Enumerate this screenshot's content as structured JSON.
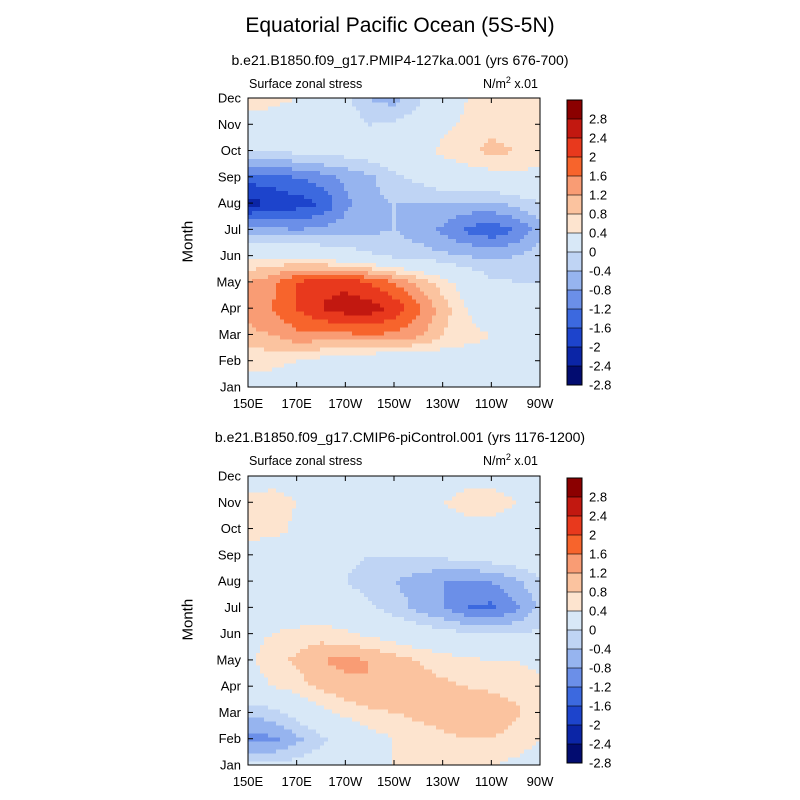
{
  "title": "Equatorial Pacific Ocean (5S-5N)",
  "units": {
    "base": "N/m",
    "sup": "2",
    "suffix": " x.01"
  },
  "month_ticks": [
    "Jan",
    "Feb",
    "Mar",
    "Apr",
    "May",
    "Jun",
    "Jul",
    "Aug",
    "Sep",
    "Oct",
    "Nov",
    "Dec"
  ],
  "lon_ticks": [
    "150E",
    "170E",
    "170W",
    "150W",
    "130W",
    "110W",
    "90W"
  ],
  "colorbar_labels": [
    "2.8",
    "2.4",
    "2",
    "1.6",
    "1.2",
    "0.8",
    "0.4",
    "0",
    "-0.4",
    "-0.8",
    "-1.2",
    "-1.6",
    "-2",
    "-2.4",
    "-2.8"
  ],
  "colorbar_colors": [
    "#8b0000",
    "#c21810",
    "#e8391d",
    "#f7642c",
    "#f99c74",
    "#fbc39f",
    "#fde4cf",
    "#d8e8f7",
    "#bfd4f4",
    "#96b4ef",
    "#6b8fe8",
    "#3c69df",
    "#1d44cc",
    "#0b25a6",
    "#020c70"
  ],
  "panels": [
    {
      "subtitle": "b.e21.B1850.f09_g17.PMIP4-127ka.001 (yrs 676-700)",
      "field_label": "Surface zonal stress",
      "ylabel": "Month"
    },
    {
      "subtitle": "b.e21.B1850.f09_g17.CMIP6-piControl.001 (yrs 1176-1200)",
      "field_label": "Surface zonal stress",
      "ylabel": "Month"
    }
  ],
  "chart_data": [
    {
      "type": "heatmap",
      "title": "b.e21.B1850.f09_g17.PMIP4-127ka.001 (yrs 676-700)",
      "field": "Surface zonal stress",
      "units": "N/m2 x.01",
      "ylabel": "Month",
      "x_lon": [
        150,
        160,
        170,
        180,
        190,
        200,
        210,
        220,
        230,
        240,
        250,
        260,
        270
      ],
      "y_month": [
        "Jan",
        "Feb",
        "Mar",
        "Apr",
        "May",
        "Jun",
        "Jul",
        "Aug",
        "Sep",
        "Oct",
        "Nov",
        "Dec"
      ],
      "levels": [
        -2.8,
        -2.4,
        -2,
        -1.6,
        -1.2,
        -0.8,
        -0.4,
        0,
        0.4,
        0.8,
        1.2,
        1.6,
        2,
        2.4,
        2.8
      ],
      "z": [
        [
          0.2,
          0.2,
          0.1,
          0.0,
          -0.2,
          -0.4,
          -0.3,
          -0.2,
          0.0,
          0.1,
          0.2,
          0.2,
          0.1
        ],
        [
          0.5,
          0.5,
          0.4,
          0.2,
          0.0,
          -0.1,
          -0.1,
          0.0,
          0.0,
          0.2,
          0.3,
          0.3,
          0.2
        ],
        [
          1.1,
          1.2,
          1.5,
          1.5,
          1.5,
          1.6,
          1.5,
          1.3,
          0.8,
          0.5,
          0.4,
          0.3,
          0.1
        ],
        [
          1.3,
          1.6,
          2.0,
          2.4,
          2.6,
          2.6,
          2.3,
          1.7,
          1.0,
          0.4,
          0.1,
          0.0,
          -0.1
        ],
        [
          1.2,
          1.5,
          2.0,
          2.3,
          2.3,
          2.0,
          1.6,
          1.1,
          0.6,
          0.1,
          -0.3,
          -0.4,
          -0.4
        ],
        [
          0.3,
          0.3,
          0.3,
          0.1,
          -0.1,
          -0.3,
          -0.5,
          -0.6,
          -0.7,
          -0.8,
          -0.9,
          -0.8,
          -0.6
        ],
        [
          -1.0,
          -1.1,
          -1.2,
          -1.1,
          -1.0,
          -0.9,
          -0.8,
          -1.0,
          -1.3,
          -1.7,
          -1.9,
          -1.6,
          -1.0
        ],
        [
          -2.6,
          -2.3,
          -2.2,
          -2.0,
          -1.3,
          -0.9,
          -0.8,
          -0.8,
          -0.8,
          -0.9,
          -0.9,
          -0.7,
          -0.4
        ],
        [
          -1.8,
          -1.8,
          -1.6,
          -1.4,
          -1.1,
          -0.9,
          -0.5,
          -0.3,
          0.0,
          0.1,
          0.2,
          0.3,
          0.2
        ],
        [
          -0.4,
          -0.4,
          -0.3,
          -0.2,
          -0.2,
          -0.1,
          0.0,
          0.2,
          0.5,
          0.7,
          0.9,
          0.8,
          0.6
        ],
        [
          0.2,
          0.2,
          0.1,
          0.0,
          -0.1,
          -0.4,
          -0.3,
          -0.1,
          0.3,
          0.5,
          0.7,
          0.6,
          0.5
        ],
        [
          0.6,
          0.5,
          0.4,
          0.1,
          -0.3,
          -0.8,
          -1.0,
          -0.5,
          0.0,
          0.4,
          0.6,
          0.5,
          0.4
        ]
      ],
      "xlim": [
        150,
        270
      ],
      "zlim": [
        -2.8,
        2.8
      ]
    },
    {
      "type": "heatmap",
      "title": "b.e21.B1850.f09_g17.CMIP6-piControl.001 (yrs 1176-1200)",
      "field": "Surface zonal stress",
      "units": "N/m2 x.01",
      "ylabel": "Month",
      "x_lon": [
        150,
        160,
        170,
        180,
        190,
        200,
        210,
        220,
        230,
        240,
        250,
        260,
        270
      ],
      "y_month": [
        "Jan",
        "Feb",
        "Mar",
        "Apr",
        "May",
        "Jun",
        "Jul",
        "Aug",
        "Sep",
        "Oct",
        "Nov",
        "Dec"
      ],
      "levels": [
        -2.8,
        -2.4,
        -2,
        -1.6,
        -1.2,
        -0.8,
        -0.4,
        0,
        0.4,
        0.8,
        1.2,
        1.6,
        2,
        2.4,
        2.8
      ],
      "z": [
        [
          -0.3,
          -0.3,
          -0.2,
          -0.1,
          0.1,
          0.3,
          0.4,
          0.4,
          0.4,
          0.4,
          0.4,
          0.3,
          0.2
        ],
        [
          -1.3,
          -1.3,
          -0.9,
          -0.5,
          -0.1,
          0.2,
          0.4,
          0.6,
          0.7,
          0.8,
          0.8,
          0.6,
          0.4
        ],
        [
          -0.7,
          -0.6,
          -0.2,
          0.2,
          0.5,
          0.7,
          0.8,
          0.9,
          1.0,
          1.1,
          1.2,
          0.9,
          0.5
        ],
        [
          0.2,
          0.4,
          0.6,
          0.9,
          1.1,
          1.2,
          1.2,
          1.0,
          0.9,
          0.8,
          0.7,
          0.6,
          0.5
        ],
        [
          0.3,
          0.6,
          0.9,
          1.2,
          1.3,
          1.2,
          1.0,
          0.8,
          0.6,
          0.5,
          0.4,
          0.4,
          0.3
        ],
        [
          0.3,
          0.4,
          0.5,
          0.6,
          0.5,
          0.3,
          0.1,
          -0.1,
          -0.2,
          -0.3,
          -0.4,
          -0.4,
          -0.3
        ],
        [
          0.2,
          0.2,
          0.1,
          0.0,
          -0.1,
          -0.3,
          -0.6,
          -0.9,
          -1.2,
          -1.6,
          -1.7,
          -1.3,
          -0.7
        ],
        [
          -0.1,
          -0.1,
          -0.1,
          -0.2,
          -0.4,
          -0.6,
          -0.8,
          -1.0,
          -1.2,
          -1.3,
          -1.2,
          -0.9,
          -0.5
        ],
        [
          0.1,
          0.0,
          -0.1,
          -0.2,
          -0.3,
          -0.4,
          -0.4,
          -0.4,
          -0.3,
          -0.2,
          -0.1,
          0.0,
          0.1
        ],
        [
          0.6,
          0.6,
          0.3,
          0.1,
          0.0,
          -0.1,
          0.0,
          0.1,
          0.2,
          0.3,
          0.3,
          0.3,
          0.3
        ],
        [
          0.5,
          0.6,
          0.4,
          0.2,
          0.0,
          -0.1,
          0.0,
          0.2,
          0.4,
          0.5,
          0.5,
          0.4,
          0.3
        ],
        [
          0.2,
          0.2,
          0.1,
          0.0,
          -0.1,
          -0.2,
          -0.1,
          0.0,
          0.2,
          0.3,
          0.3,
          0.3,
          0.2
        ]
      ],
      "xlim": [
        150,
        270
      ],
      "zlim": [
        -2.8,
        2.8
      ]
    }
  ]
}
